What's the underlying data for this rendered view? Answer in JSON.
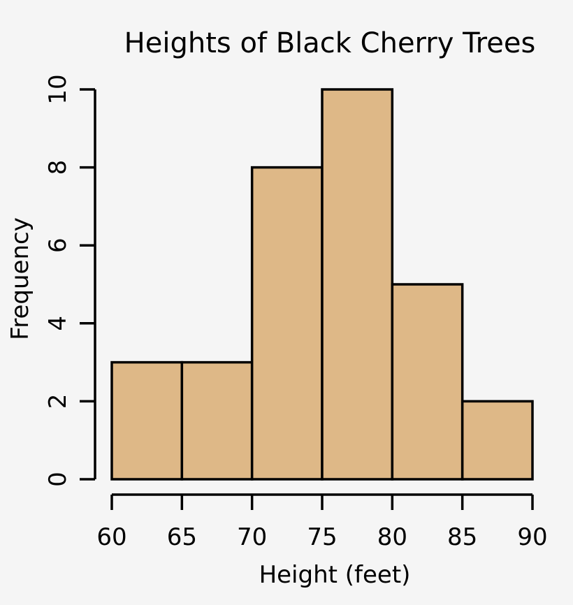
{
  "chart_data": {
    "type": "bar",
    "title": "Heights of Black Cherry Trees",
    "xlabel": "Height (feet)",
    "ylabel": "Frequency",
    "bins": [
      {
        "from": 60,
        "to": 65,
        "value": 3
      },
      {
        "from": 65,
        "to": 70,
        "value": 3
      },
      {
        "from": 70,
        "to": 75,
        "value": 8
      },
      {
        "from": 75,
        "to": 80,
        "value": 10
      },
      {
        "from": 80,
        "to": 85,
        "value": 5
      },
      {
        "from": 85,
        "to": 90,
        "value": 2
      }
    ],
    "xticks": [
      "60",
      "65",
      "70",
      "75",
      "80",
      "85",
      "90"
    ],
    "yticks": [
      "0",
      "2",
      "4",
      "6",
      "8",
      "10"
    ],
    "xlim": [
      60,
      90
    ],
    "ylim": [
      0,
      10
    ],
    "grid": false,
    "bar_color": "#deb887",
    "edge_color": "#000000"
  }
}
